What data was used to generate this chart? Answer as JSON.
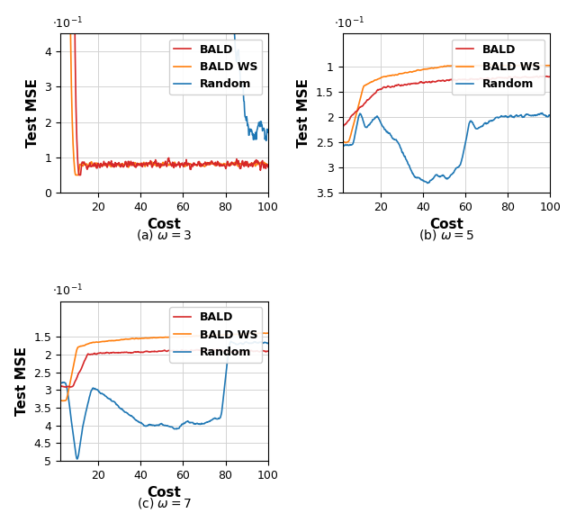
{
  "colors": {
    "BALD": "#d62728",
    "BALD_WS": "#ff7f0e",
    "Random": "#1f77b4"
  },
  "legend_labels": [
    "BALD",
    "BALD WS",
    "Random"
  ],
  "xlabel": "Cost",
  "ylabel": "Test MSE",
  "subtitles": [
    "(a) $\\omega = 3$",
    "(b) $\\omega = 5$",
    "(c) $\\omega = 7$"
  ],
  "panel_a": {
    "ylim": [
      0.0,
      0.045
    ],
    "yticks": [
      0.0,
      0.01,
      0.02,
      0.03,
      0.04
    ],
    "yticklabels": [
      "0",
      "1",
      "2",
      "3",
      "4"
    ]
  },
  "panel_b": {
    "ylim": [
      0.095,
      0.035
    ],
    "yticks": [
      0.1,
      0.15,
      0.2,
      0.25,
      0.3,
      0.35
    ],
    "yticklabels": [
      "1",
      "1.5",
      "2",
      "2.5",
      "3",
      "3.5"
    ]
  },
  "panel_c": {
    "ylim": [
      0.14,
      0.05
    ],
    "yticks": [
      0.15,
      0.2,
      0.25,
      0.3,
      0.35,
      0.4,
      0.45,
      0.5
    ],
    "yticklabels": [
      "1.5",
      "2",
      "2.5",
      "3",
      "3.5",
      "4",
      "4.5",
      "5"
    ]
  },
  "figsize": [
    6.4,
    5.9
  ],
  "dpi": 100
}
